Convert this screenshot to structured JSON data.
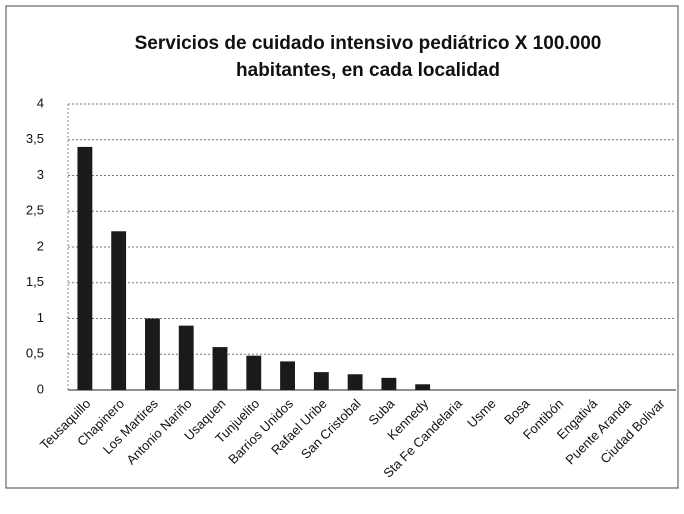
{
  "chart_data": {
    "type": "bar",
    "title": [
      "Servicios de cuidado intensivo pediátrico X 100.000",
      "habitantes, en cada localidad"
    ],
    "categories": [
      "Teusaquillo",
      "Chapinero",
      "Los Martires",
      "Antonio Nariño",
      "Usaquen",
      "Tunjuelito",
      "Barrios Unidos",
      "Rafael Uribe",
      "San Cristobal",
      "Suba",
      "Kennedy",
      "Sta Fe Candelaria",
      "Usme",
      "Bosa",
      "Fontibón",
      "Engativá",
      "Puente Aranda",
      "Ciudad Bolivar"
    ],
    "values": [
      3.4,
      2.22,
      1.0,
      0.9,
      0.6,
      0.48,
      0.4,
      0.25,
      0.22,
      0.17,
      0.08,
      0,
      0,
      0,
      0,
      0,
      0,
      0
    ],
    "color": "#1a1a1a",
    "ylim": [
      0,
      4
    ],
    "yticks": [
      0,
      {
        "value": 0.5,
        "label": "0,5"
      },
      1,
      {
        "value": 1.5,
        "label": "1,5"
      },
      2,
      {
        "value": 2.5,
        "label": "2,5"
      },
      3,
      {
        "value": 3.5,
        "label": "3,5"
      },
      4
    ],
    "grid": true
  }
}
